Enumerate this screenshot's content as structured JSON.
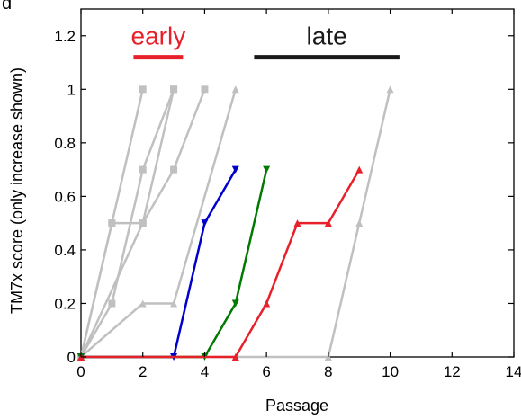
{
  "chart_data": {
    "type": "line",
    "panel_label": "d",
    "xlabel": "Passage",
    "ylabel": "TM7x score (only increase shown)",
    "xlim": [
      0,
      14
    ],
    "ylim": [
      0,
      1.3
    ],
    "xticks": [
      0,
      2,
      4,
      6,
      8,
      10,
      12,
      14
    ],
    "yticks": [
      0,
      0.2,
      0.4,
      0.6,
      0.8,
      1,
      1.2
    ],
    "xtick_labels": [
      "0",
      "2",
      "4",
      "6",
      "8",
      "10",
      "12",
      "14"
    ],
    "ytick_labels": [
      "0",
      "0.2",
      "0.4",
      "0.6",
      "0.8",
      "1",
      "1.2"
    ],
    "grid": false,
    "annotations": [
      {
        "label": "early",
        "color": "#e8202a",
        "x_start": 1.7,
        "x_end": 3.3,
        "y": 1.12
      },
      {
        "label": "late",
        "color": "#1a1a1a",
        "x_start": 5.6,
        "x_end": 10.3,
        "y": 1.12
      }
    ],
    "series": [
      {
        "color": "#c0c0c0",
        "marker": "square",
        "x": [
          0,
          1,
          2,
          3
        ],
        "y": [
          0,
          0.5,
          0.5,
          1.0
        ]
      },
      {
        "color": "#c0c0c0",
        "marker": "square",
        "x": [
          0,
          1,
          2
        ],
        "y": [
          0,
          0.5,
          1.0
        ]
      },
      {
        "color": "#c0c0c0",
        "marker": "square",
        "x": [
          0,
          1,
          2,
          3
        ],
        "y": [
          0,
          0.2,
          0.7,
          1.0
        ]
      },
      {
        "color": "#c0c0c0",
        "marker": "square",
        "x": [
          0,
          2,
          3,
          4
        ],
        "y": [
          0,
          0.5,
          0.7,
          1.0
        ]
      },
      {
        "color": "#c0c0c0",
        "marker": "triangle-up",
        "x": [
          0,
          2,
          3,
          5
        ],
        "y": [
          0,
          0.2,
          0.2,
          1.0
        ]
      },
      {
        "color": "#c0c0c0",
        "marker": "triangle-up",
        "x": [
          0,
          8,
          9,
          10
        ],
        "y": [
          0,
          0,
          0.5,
          1.0
        ]
      },
      {
        "color": "#0000cc",
        "marker": "triangle-down",
        "x": [
          0,
          3,
          4,
          5
        ],
        "y": [
          0,
          0,
          0.5,
          0.7
        ]
      },
      {
        "color": "#007a00",
        "marker": "triangle-down",
        "x": [
          0,
          4,
          5,
          6
        ],
        "y": [
          0,
          0,
          0.2,
          0.7
        ]
      },
      {
        "color": "#e8202a",
        "marker": "triangle-up",
        "x": [
          0,
          5,
          6,
          7,
          8,
          9
        ],
        "y": [
          0,
          0,
          0.2,
          0.5,
          0.5,
          0.7
        ]
      }
    ]
  }
}
